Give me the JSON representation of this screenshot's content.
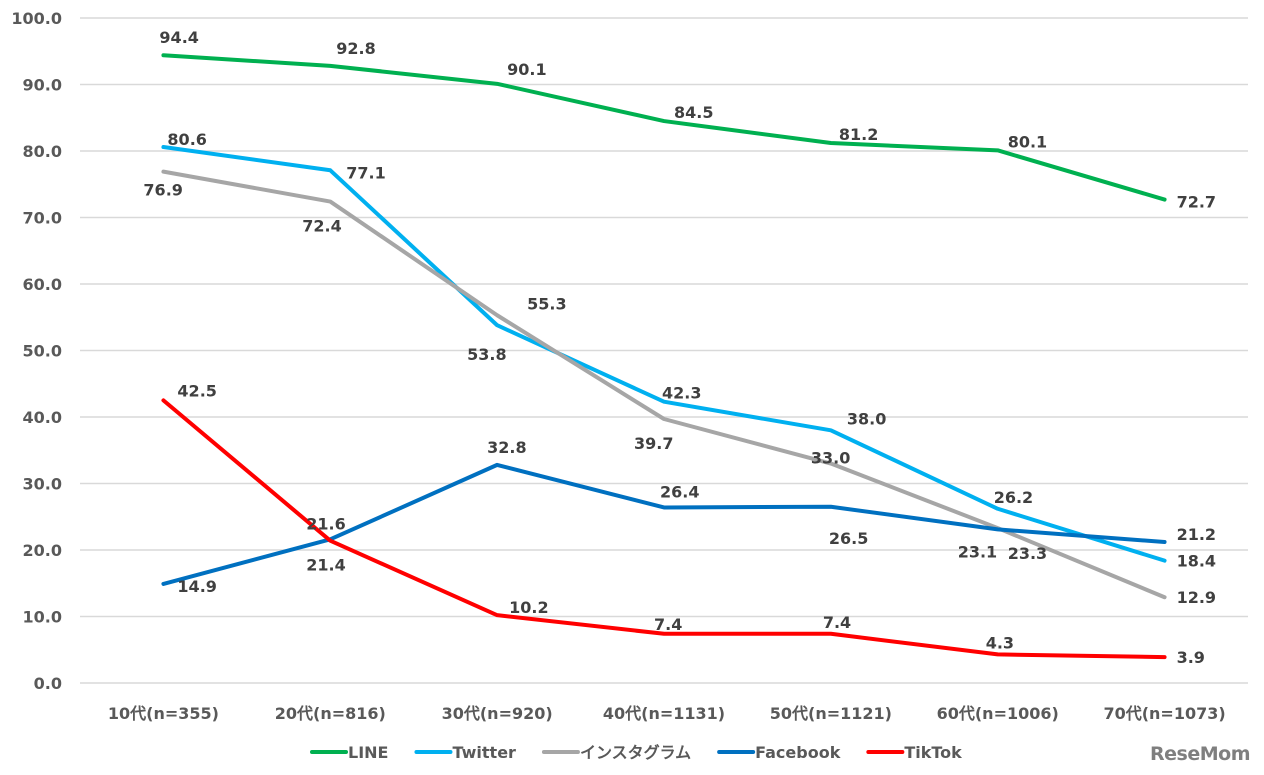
{
  "chart_data": {
    "type": "line",
    "title": "",
    "xlabel": "",
    "ylabel": "",
    "ylim": [
      0,
      100
    ],
    "yticks": [
      "0.0",
      "10.0",
      "20.0",
      "30.0",
      "40.0",
      "50.0",
      "60.0",
      "70.0",
      "80.0",
      "90.0",
      "100.0"
    ],
    "grid": true,
    "legend_position": "bottom",
    "categories": [
      "10代(n=355)",
      "20代(n=816)",
      "30代(n=920)",
      "40代(n=1131)",
      "50代(n=1121)",
      "60代(n=1006)",
      "70代(n=1073)"
    ],
    "series": [
      {
        "name": "LINE",
        "color": "#00b050",
        "values": [
          94.4,
          92.8,
          90.1,
          84.5,
          81.2,
          80.1,
          72.7
        ],
        "labels": [
          "94.4",
          "92.8",
          "90.1",
          "84.5",
          "81.2",
          "80.1",
          "72.7"
        ]
      },
      {
        "name": "Twitter",
        "color": "#00b0f0",
        "values": [
          80.6,
          77.1,
          53.8,
          42.3,
          38.0,
          26.2,
          18.4
        ],
        "labels": [
          "80.6",
          "77.1",
          "53.8",
          "42.3",
          "38.0",
          "26.2",
          "18.4"
        ]
      },
      {
        "name": "インスタグラム",
        "color": "#a6a6a6",
        "values": [
          76.9,
          72.4,
          55.3,
          39.7,
          33.0,
          23.3,
          12.9
        ],
        "labels": [
          "76.9",
          "72.4",
          "55.3",
          "39.7",
          "33.0",
          "23.3",
          "12.9"
        ]
      },
      {
        "name": "Facebook",
        "color": "#0070c0",
        "values": [
          14.9,
          21.6,
          32.8,
          26.4,
          26.5,
          23.1,
          21.2
        ],
        "labels": [
          "14.9",
          "21.6",
          "32.8",
          "26.4",
          "26.5",
          "23.1",
          "21.2"
        ]
      },
      {
        "name": "TikTok",
        "color": "#ff0000",
        "values": [
          42.5,
          21.4,
          10.2,
          7.4,
          7.4,
          4.3,
          3.9
        ],
        "labels": [
          "42.5",
          "21.4",
          "10.2",
          "7.4",
          "7.4",
          "4.3",
          "3.9"
        ]
      }
    ]
  },
  "watermark": "ReseMom"
}
